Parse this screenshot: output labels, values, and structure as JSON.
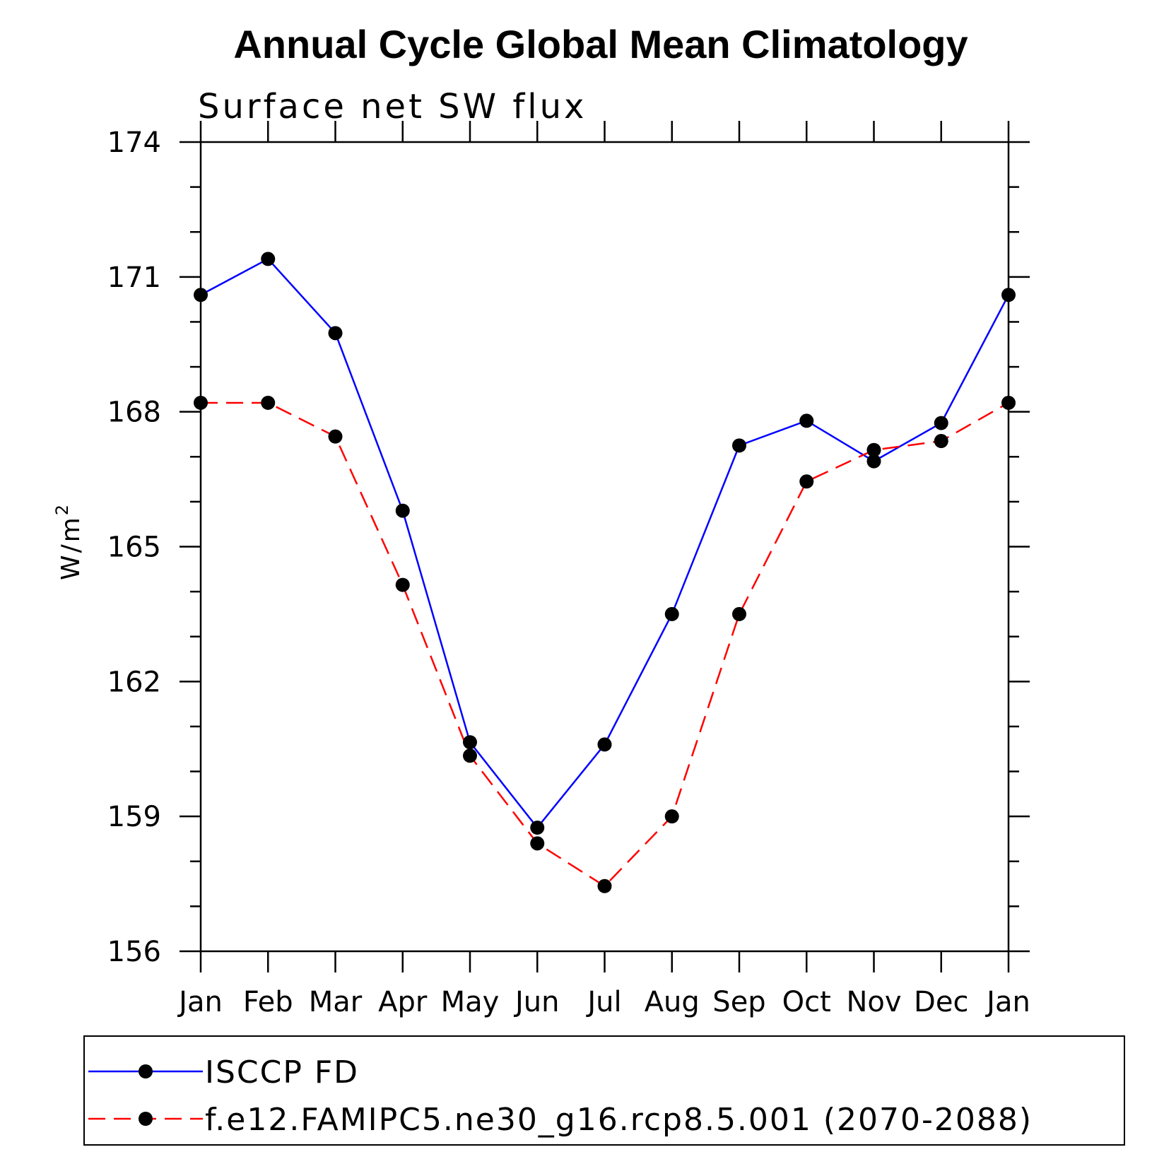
{
  "chart_data": {
    "type": "line",
    "title": "Annual Cycle Global Mean Climatology",
    "subtitle": "Surface net SW flux",
    "xlabel": "",
    "ylabel": "W/m",
    "ylabel_superscript": "2",
    "ylim": [
      156,
      174
    ],
    "yticks": [
      "156",
      "159",
      "162",
      "165",
      "168",
      "171",
      "174"
    ],
    "categories": [
      "Jan",
      "Feb",
      "Mar",
      "Apr",
      "May",
      "Jun",
      "Jul",
      "Aug",
      "Sep",
      "Oct",
      "Nov",
      "Dec",
      "Jan"
    ],
    "grid": false,
    "legend_position": "bottom",
    "series": [
      {
        "name": "ISCCP FD",
        "color": "#0000ff",
        "line_style": "solid",
        "marker": "filled-circle",
        "values": [
          170.6,
          171.4,
          169.75,
          165.8,
          160.65,
          158.75,
          160.6,
          163.5,
          167.25,
          167.8,
          166.9,
          167.75,
          170.6
        ]
      },
      {
        "name": "f.e12.FAMIPC5.ne30_g16.rcp8.5.001 (2070-2088)",
        "color": "#ff0000",
        "line_style": "dashed",
        "marker": "filled-circle",
        "values": [
          168.2,
          168.2,
          167.45,
          164.15,
          160.35,
          158.4,
          157.45,
          159.0,
          163.5,
          166.45,
          167.15,
          167.35,
          168.2
        ]
      }
    ]
  }
}
